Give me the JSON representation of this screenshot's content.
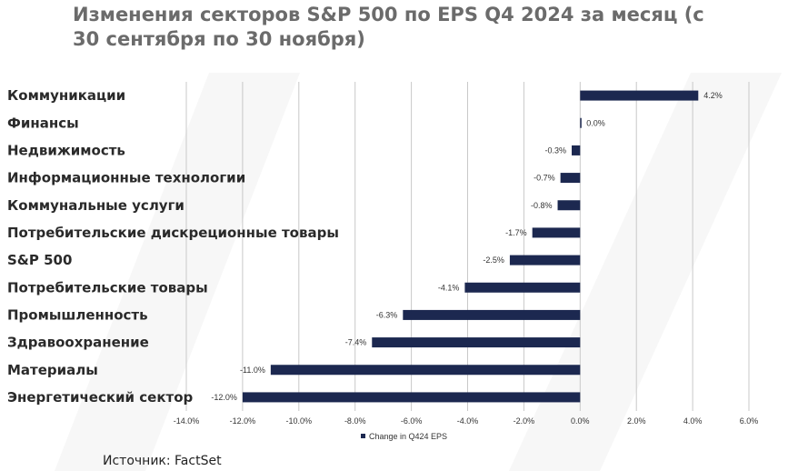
{
  "title": "Изменения секторов S&P 500 по EPS Q4 2024 за месяц (с 30 сентября по 30 ноября)",
  "source": "Источник: FactSet",
  "colors": {
    "bar": "#1c2850",
    "grid": "#c8c8c8",
    "title": "#6b6b6b"
  },
  "chart_data": {
    "type": "bar",
    "orientation": "horizontal",
    "categories": [
      "Коммуникации",
      "Финансы",
      "Недвижимость",
      "Информационные технологии",
      "Коммунальные услуги",
      "Потребительские дискреционные товары",
      "S&P 500",
      "Потребительские товары",
      "Промышленность",
      "Здравоохранение",
      "Материалы",
      "Энергетический сектор"
    ],
    "series": [
      {
        "name": "Change in Q424 EPS",
        "values": [
          4.2,
          0.0,
          -0.3,
          -0.7,
          -0.8,
          -1.7,
          -2.5,
          -4.1,
          -6.3,
          -7.4,
          -11.0,
          -12.0
        ],
        "labels": [
          "4.2%",
          "0.0%",
          "-0.3%",
          "-0.7%",
          "-0.8%",
          "-1.7%",
          "-2.5%",
          "-4.1%",
          "-6.3%",
          "-7.4%",
          "-11.0%",
          "-12.0%"
        ]
      }
    ],
    "xlim": [
      -14,
      6
    ],
    "x_ticks": [
      -14,
      -12,
      -10,
      -8,
      -6,
      -4,
      -2,
      0,
      2,
      4,
      6
    ],
    "x_tick_labels": [
      "-14.0%",
      "-12.0%",
      "-10.0%",
      "-8.0%",
      "-6.0%",
      "-4.0%",
      "-2.0%",
      "0.0%",
      "2.0%",
      "4.0%",
      "6.0%"
    ],
    "grid": "vertical",
    "legend": "bottom"
  }
}
